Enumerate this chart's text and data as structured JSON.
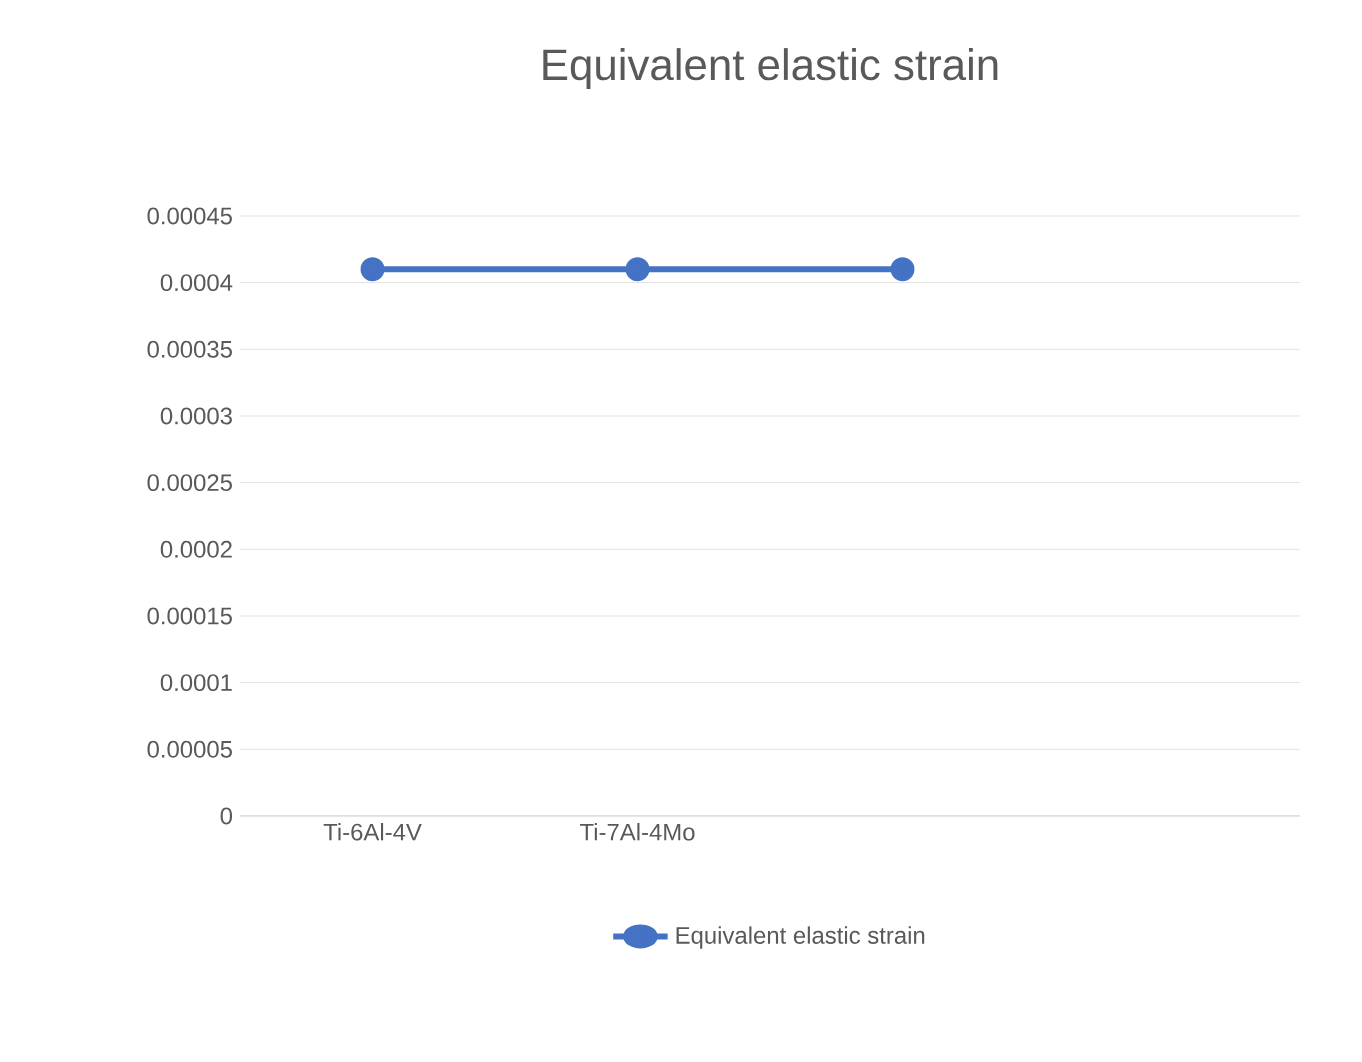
{
  "chart_data": {
    "type": "line",
    "title": "Equivalent elastic strain",
    "categories": [
      "Ti-6Al-4V",
      "Ti-7Al-4Mo",
      null,
      null
    ],
    "series": [
      {
        "name": "Equivalent elastic strain",
        "color": "#4472c4",
        "values": [
          0.00041,
          0.00041,
          0.00041,
          null
        ]
      }
    ],
    "ylim": [
      0,
      0.00045
    ],
    "yticks": [
      {
        "value": 0,
        "label": "0"
      },
      {
        "value": 5e-05,
        "label": "0.00005"
      },
      {
        "value": 0.0001,
        "label": "0.0001"
      },
      {
        "value": 0.00015,
        "label": "0.00015"
      },
      {
        "value": 0.0002,
        "label": "0.0002"
      },
      {
        "value": 0.00025,
        "label": "0.00025"
      },
      {
        "value": 0.0003,
        "label": "0.0003"
      },
      {
        "value": 0.00035,
        "label": "0.00035"
      },
      {
        "value": 0.0004,
        "label": "0.0004"
      },
      {
        "value": 0.00045,
        "label": "0.00045"
      }
    ],
    "grid": "y",
    "legend": "bottom",
    "marker": "circle",
    "line_style": "solid"
  }
}
